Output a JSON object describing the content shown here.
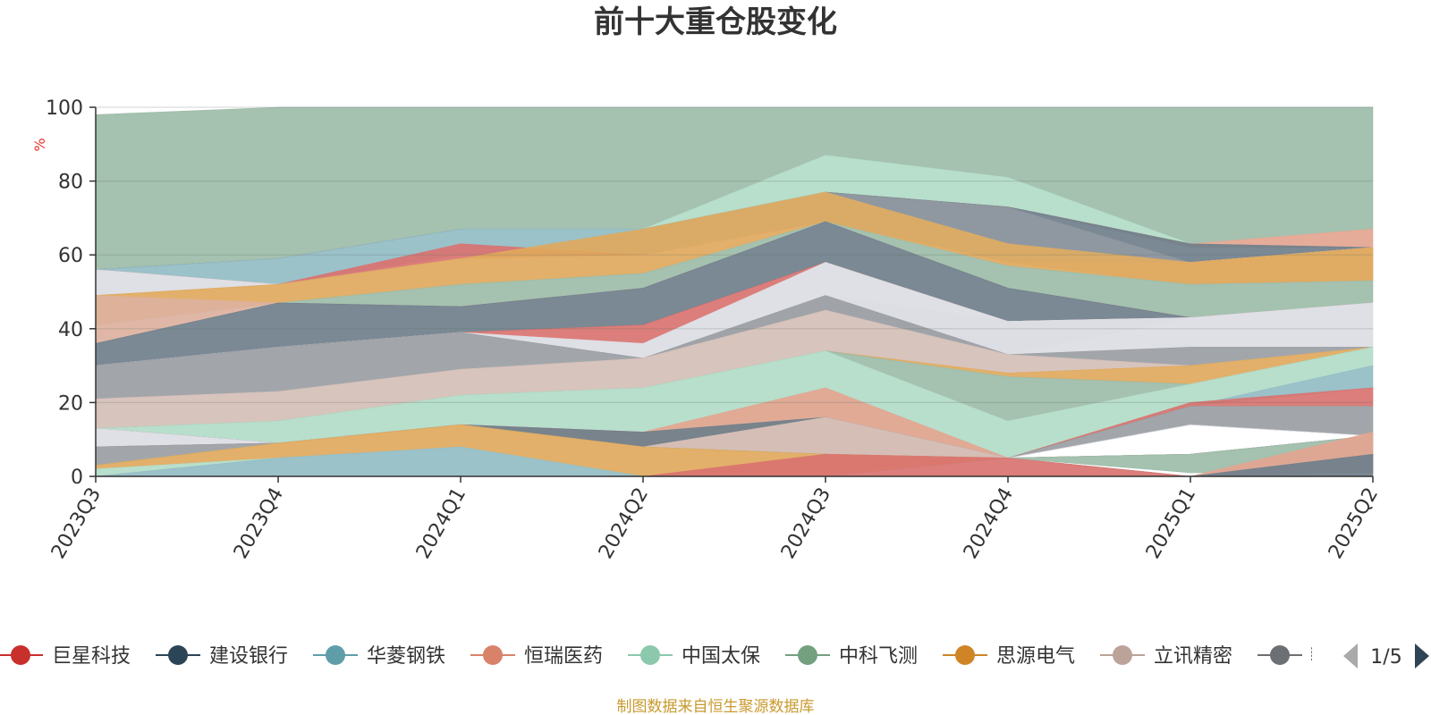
{
  "chart_data": {
    "type": "area",
    "title": "前十大重仓股变化",
    "ylabel": "%",
    "ylim": [
      0,
      100
    ],
    "yticks": [
      0,
      20,
      40,
      60,
      80,
      100
    ],
    "grid": true,
    "categories": [
      "2023Q3",
      "2023Q4",
      "2024Q1",
      "2024Q2",
      "2024Q3",
      "2024Q4",
      "2025Q1",
      "2025Q2"
    ],
    "bands": [
      {
        "color": "#9dbca8",
        "lower": [
          56,
          59,
          67,
          67,
          87,
          81,
          63,
          67
        ],
        "upper": [
          98,
          100,
          100,
          100,
          100,
          100,
          100,
          100
        ]
      },
      {
        "color": "#b2dbc8",
        "lower": [
          56,
          59,
          67,
          67,
          77,
          73,
          63,
          67
        ],
        "upper": [
          56,
          59,
          67,
          67,
          87,
          81,
          63,
          67
        ]
      },
      {
        "color": "#e3a590",
        "lower": [
          56,
          59,
          67,
          67,
          77,
          73,
          62,
          62
        ],
        "upper": [
          56,
          59,
          67,
          67,
          77,
          73,
          63,
          67
        ]
      },
      {
        "color": "#6f7f8b",
        "lower": [
          56,
          59,
          67,
          67,
          77,
          73,
          58,
          62
        ],
        "upper": [
          56,
          59,
          67,
          67,
          77,
          73,
          63,
          62
        ]
      },
      {
        "color": "#858f98",
        "lower": [
          56,
          59,
          67,
          67,
          77,
          63,
          58,
          62
        ],
        "upper": [
          56,
          59,
          67,
          67,
          77,
          73,
          58,
          62
        ]
      },
      {
        "color": "#92bcc4",
        "lower": [
          56,
          52,
          60,
          60,
          69,
          58,
          58,
          62
        ],
        "upper": [
          56,
          59,
          67,
          67,
          77,
          63,
          58,
          62
        ]
      },
      {
        "color": "#d97370",
        "lower": [
          56,
          52,
          59,
          60,
          69,
          58,
          58,
          62
        ],
        "upper": [
          56,
          52,
          63,
          60,
          69,
          58,
          58,
          62
        ]
      },
      {
        "color": "#dcdde3",
        "lower": [
          49,
          52,
          59,
          60,
          69,
          58,
          58,
          62
        ],
        "upper": [
          56,
          52,
          59,
          60,
          69,
          58,
          58,
          62
        ]
      },
      {
        "color": "#ddb19e",
        "lower": [
          49,
          52,
          59,
          60,
          69,
          58,
          52,
          53
        ],
        "upper": [
          49,
          52,
          59,
          60,
          69,
          58,
          58,
          62
        ]
      },
      {
        "color": "#e0a95d",
        "lower": [
          41,
          47,
          52,
          55,
          69,
          57,
          52,
          53
        ],
        "upper": [
          49,
          52,
          59,
          67,
          77,
          63,
          58,
          62
        ]
      },
      {
        "color": "#9dbca8",
        "lower": [
          41,
          47,
          46,
          51,
          69,
          51,
          43,
          47
        ],
        "upper": [
          41,
          47,
          52,
          55,
          69,
          57,
          52,
          53
        ]
      },
      {
        "color": "#ddb19e",
        "lower": [
          36,
          47,
          46,
          51,
          69,
          51,
          43,
          47
        ],
        "upper": [
          49,
          47,
          46,
          51,
          69,
          51,
          43,
          47
        ]
      },
      {
        "color": "#6f7f8b",
        "lower": [
          30,
          35,
          39,
          41,
          58,
          42,
          43,
          47
        ],
        "upper": [
          36,
          47,
          46,
          51,
          69,
          51,
          43,
          47
        ]
      },
      {
        "color": "#d97370",
        "lower": [
          30,
          35,
          39,
          36,
          58,
          42,
          43,
          47
        ],
        "upper": [
          30,
          35,
          39,
          41,
          58,
          42,
          43,
          47
        ]
      },
      {
        "color": "#dcdde3",
        "lower": [
          30,
          35,
          39,
          32,
          49,
          33,
          43,
          47
        ],
        "upper": [
          30,
          35,
          39,
          36,
          58,
          42,
          43,
          47
        ]
      },
      {
        "color": "#dcdde3",
        "lower": [
          30,
          35,
          39,
          32,
          45,
          33,
          35,
          35
        ],
        "upper": [
          30,
          35,
          39,
          32,
          49,
          42,
          43,
          47
        ]
      },
      {
        "color": "#9a9ea4",
        "lower": [
          21,
          23,
          29,
          32,
          45,
          33,
          30,
          35
        ],
        "upper": [
          30,
          35,
          39,
          32,
          49,
          33,
          35,
          35
        ]
      },
      {
        "color": "#d4bfb7",
        "lower": [
          13,
          15,
          22,
          24,
          34,
          28,
          30,
          35
        ],
        "upper": [
          21,
          23,
          29,
          32,
          45,
          33,
          30,
          35
        ]
      },
      {
        "color": "#e0a95d",
        "lower": [
          13,
          15,
          22,
          24,
          34,
          27,
          25,
          35
        ],
        "upper": [
          13,
          15,
          22,
          24,
          34,
          28,
          30,
          35
        ]
      },
      {
        "color": "#9dbca8",
        "lower": [
          13,
          15,
          22,
          24,
          34,
          15,
          25,
          35
        ],
        "upper": [
          13,
          15,
          22,
          24,
          34,
          27,
          25,
          35
        ]
      },
      {
        "color": "#b2dbc8",
        "lower": [
          13,
          9,
          14,
          12,
          16,
          5,
          19,
          30
        ],
        "upper": [
          13,
          15,
          22,
          24,
          34,
          15,
          25,
          35
        ]
      },
      {
        "color": "#92bcc4",
        "lower": [
          13,
          9,
          14,
          12,
          16,
          5,
          19,
          24
        ],
        "upper": [
          13,
          9,
          14,
          12,
          16,
          5,
          19,
          30
        ]
      },
      {
        "color": "#d97370",
        "lower": [
          13,
          9,
          14,
          12,
          16,
          5,
          19,
          19
        ],
        "upper": [
          13,
          9,
          14,
          12,
          16,
          5,
          20,
          24
        ]
      },
      {
        "color": "#9a9ea4",
        "lower": [
          13,
          9,
          14,
          12,
          16,
          5,
          14,
          11
        ],
        "upper": [
          13,
          9,
          14,
          12,
          16,
          5,
          19,
          19
        ]
      },
      {
        "color": "#dcdde3",
        "lower": [
          8,
          9,
          14,
          12,
          16,
          5,
          14,
          11
        ],
        "upper": [
          13,
          9,
          14,
          12,
          16,
          5,
          14,
          11
        ]
      },
      {
        "color": "#e3a590",
        "lower": [
          8,
          9,
          14,
          8,
          6,
          5,
          6,
          11
        ],
        "upper": [
          8,
          9,
          14,
          12,
          24,
          5,
          6,
          11
        ]
      },
      {
        "color": "#6f7f8b",
        "lower": [
          8,
          9,
          14,
          8,
          16,
          5,
          6,
          11
        ],
        "upper": [
          8,
          9,
          14,
          12,
          16,
          5,
          6,
          11
        ]
      },
      {
        "color": "#d4bfb7",
        "lower": [
          8,
          9,
          14,
          8,
          6,
          5,
          6,
          11
        ],
        "upper": [
          8,
          9,
          14,
          8,
          16,
          5,
          6,
          11
        ]
      },
      {
        "color": "#9a9ea4",
        "lower": [
          3,
          9,
          14,
          8,
          6,
          5,
          6,
          11
        ],
        "upper": [
          8,
          9,
          14,
          8,
          6,
          5,
          6,
          11
        ]
      },
      {
        "color": "#9dbca8",
        "lower": [
          3,
          9,
          14,
          8,
          6,
          5,
          1,
          1
        ],
        "upper": [
          3,
          9,
          14,
          8,
          6,
          5,
          6,
          11
        ]
      },
      {
        "color": "#e0a95d",
        "lower": [
          2,
          5,
          8,
          0,
          0,
          5,
          0,
          0
        ],
        "upper": [
          3,
          9,
          14,
          8,
          6,
          5,
          0,
          0
        ]
      },
      {
        "color": "#b2dbc8",
        "lower": [
          0,
          5,
          8,
          0,
          0,
          5,
          0,
          0
        ],
        "upper": [
          2,
          5,
          8,
          0,
          0,
          5,
          0,
          0
        ]
      },
      {
        "color": "#92bcc4",
        "lower": [
          0,
          0,
          0,
          0,
          0,
          5,
          0,
          0
        ],
        "upper": [
          0,
          5,
          8,
          0,
          0,
          5,
          0,
          0
        ]
      },
      {
        "color": "#d97370",
        "lower": [
          0,
          0,
          0,
          0,
          0,
          0,
          0,
          0
        ],
        "upper": [
          0,
          0,
          0,
          0,
          6,
          5,
          0,
          0
        ]
      },
      {
        "color": "#e3a590",
        "lower": [
          0,
          0,
          0,
          0,
          0,
          0,
          0,
          1
        ],
        "upper": [
          0,
          0,
          0,
          0,
          0,
          0,
          0,
          12
        ]
      },
      {
        "color": "#6f7f8b",
        "lower": [
          0,
          0,
          0,
          0,
          0,
          0,
          0,
          0
        ],
        "upper": [
          0,
          0,
          0,
          0,
          0,
          0,
          0,
          6
        ]
      }
    ],
    "legend": {
      "placement": "bottom",
      "items": [
        {
          "name": "巨星科技",
          "color": "#c8302c"
        },
        {
          "name": "建设银行",
          "color": "#2c4556"
        },
        {
          "name": "华菱钢铁",
          "color": "#5f9ea8"
        },
        {
          "name": "恒瑞医药",
          "color": "#d9826a"
        },
        {
          "name": "中国太保",
          "color": "#8cc8ac"
        },
        {
          "name": "中科飞测",
          "color": "#74a080"
        },
        {
          "name": "思源电气",
          "color": "#cf8426"
        },
        {
          "name": "立讯精密",
          "color": "#bca39a"
        },
        {
          "name": "𝄄",
          "color": "#6c6f74"
        }
      ],
      "page": "1/5"
    }
  },
  "source_text": "制图数据来自恒生聚源数据库"
}
